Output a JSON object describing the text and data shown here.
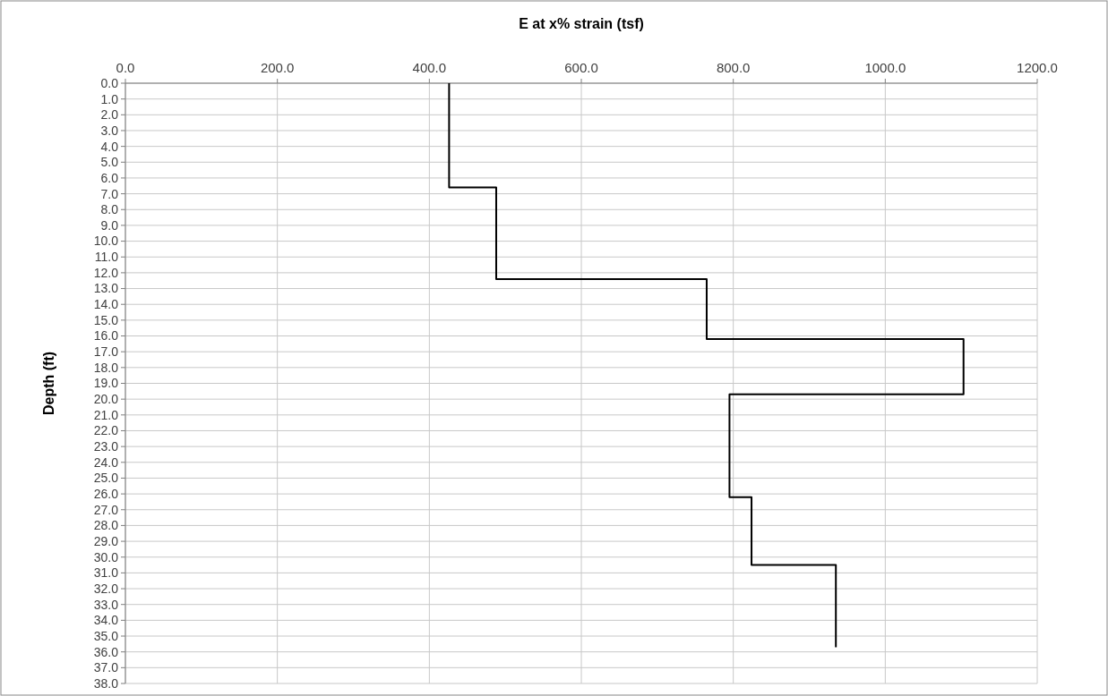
{
  "chart_data": {
    "type": "line",
    "xlabel": "E at x% strain (tsf)",
    "ylabel": "Depth (ft)",
    "xlim": [
      0,
      1200
    ],
    "xticks": [
      {
        "value": 0,
        "label": "0.0"
      },
      {
        "value": 200,
        "label": "200.0"
      },
      {
        "value": 400,
        "label": "400.0"
      },
      {
        "value": 600,
        "label": "600.0"
      },
      {
        "value": 800,
        "label": "800.0"
      },
      {
        "value": 1000,
        "label": "1000.0"
      },
      {
        "value": 1200,
        "label": "1200.0"
      }
    ],
    "ylim": [
      38,
      0
    ],
    "yticks": [
      {
        "value": 0,
        "label": "0.0"
      },
      {
        "value": 1,
        "label": "1.0"
      },
      {
        "value": 2,
        "label": "2.0"
      },
      {
        "value": 3,
        "label": "3.0"
      },
      {
        "value": 4,
        "label": "4.0"
      },
      {
        "value": 5,
        "label": "5.0"
      },
      {
        "value": 6,
        "label": "6.0"
      },
      {
        "value": 7,
        "label": "7.0"
      },
      {
        "value": 8,
        "label": "8.0"
      },
      {
        "value": 9,
        "label": "9.0"
      },
      {
        "value": 10,
        "label": "10.0"
      },
      {
        "value": 11,
        "label": "11.0"
      },
      {
        "value": 12,
        "label": "12.0"
      },
      {
        "value": 13,
        "label": "13.0"
      },
      {
        "value": 14,
        "label": "14.0"
      },
      {
        "value": 15,
        "label": "15.0"
      },
      {
        "value": 16,
        "label": "16.0"
      },
      {
        "value": 17,
        "label": "17.0"
      },
      {
        "value": 18,
        "label": "18.0"
      },
      {
        "value": 19,
        "label": "19.0"
      },
      {
        "value": 20,
        "label": "20.0"
      },
      {
        "value": 21,
        "label": "21.0"
      },
      {
        "value": 22,
        "label": "22.0"
      },
      {
        "value": 23,
        "label": "23.0"
      },
      {
        "value": 24,
        "label": "24.0"
      },
      {
        "value": 25,
        "label": "25.0"
      },
      {
        "value": 26,
        "label": "26.0"
      },
      {
        "value": 27,
        "label": "27.0"
      },
      {
        "value": 28,
        "label": "28.0"
      },
      {
        "value": 29,
        "label": "29.0"
      },
      {
        "value": 30,
        "label": "30.0"
      },
      {
        "value": 31,
        "label": "31.0"
      },
      {
        "value": 32,
        "label": "32.0"
      },
      {
        "value": 33,
        "label": "33.0"
      },
      {
        "value": 34,
        "label": "34.0"
      },
      {
        "value": 35,
        "label": "35.0"
      },
      {
        "value": 36,
        "label": "36.0"
      },
      {
        "value": 37,
        "label": "37.0"
      },
      {
        "value": 38,
        "label": "38.0"
      }
    ],
    "grid": true,
    "marker": "none",
    "line_style": "solid",
    "series": [
      {
        "color": "#000000",
        "x": [
          426,
          426,
          488,
          488,
          765,
          765,
          1103,
          1103,
          795,
          795,
          824,
          824,
          935,
          935
        ],
        "values": [
          0,
          6.6,
          6.6,
          12.4,
          12.4,
          16.2,
          16.2,
          19.7,
          19.7,
          26.2,
          26.2,
          30.5,
          30.5,
          35.7
        ]
      }
    ]
  }
}
